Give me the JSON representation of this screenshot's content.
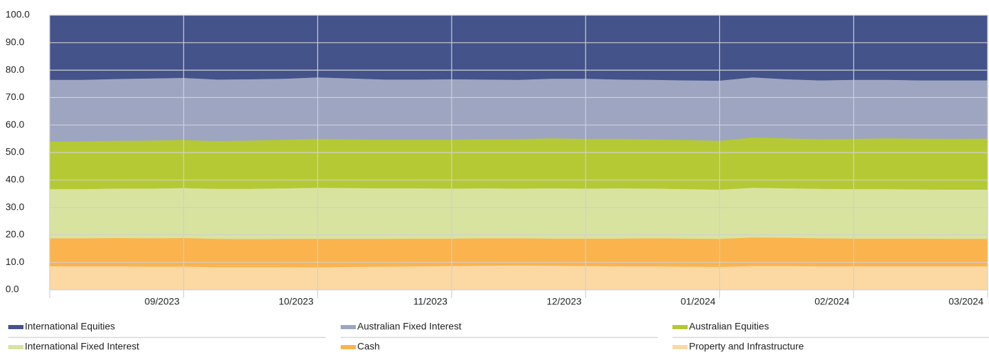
{
  "chart_data": {
    "type": "stacked_area",
    "categories": [
      null,
      null,
      null,
      null,
      "09/2023",
      null,
      null,
      null,
      "10/2023",
      null,
      null,
      null,
      "11/2023",
      null,
      null,
      null,
      "12/2023",
      null,
      null,
      null,
      "01/2024",
      null,
      null,
      null,
      "02/2024",
      null,
      null,
      null,
      "03/2024"
    ],
    "series": [
      {
        "name": "International Equities",
        "color": "#44538a",
        "values": [
          23.5,
          23.5,
          23.2,
          23.0,
          22.8,
          23.4,
          23.3,
          23.1,
          22.6,
          23.0,
          23.4,
          23.4,
          23.3,
          23.4,
          23.5,
          23.1,
          23.1,
          23.4,
          23.5,
          23.7,
          23.8,
          22.6,
          23.3,
          23.7,
          23.5,
          23.5,
          23.7,
          23.7,
          23.7
        ]
      },
      {
        "name": "Australian Fixed Interest",
        "color": "#9ea5c1",
        "values": [
          22.5,
          22.4,
          22.5,
          22.6,
          22.6,
          22.4,
          22.3,
          22.2,
          22.4,
          22.2,
          21.9,
          21.9,
          22.0,
          21.7,
          21.6,
          21.7,
          21.9,
          21.6,
          21.7,
          21.7,
          21.9,
          21.9,
          21.5,
          21.4,
          21.5,
          21.3,
          21.2,
          21.3,
          21.2
        ]
      },
      {
        "name": "Australian Equities",
        "color": "#b5c934",
        "values": [
          17.3,
          17.4,
          17.4,
          17.5,
          17.5,
          17.4,
          17.6,
          17.7,
          17.8,
          17.7,
          17.7,
          17.7,
          17.8,
          17.9,
          18.0,
          18.2,
          18.1,
          18.0,
          17.9,
          17.9,
          17.8,
          18.3,
          18.2,
          18.1,
          18.3,
          18.5,
          18.5,
          18.5,
          18.6
        ]
      },
      {
        "name": "International Fixed Interest",
        "color": "#d9e3a0",
        "values": [
          17.9,
          17.9,
          18.0,
          18.1,
          18.2,
          18.2,
          18.3,
          18.4,
          18.6,
          18.5,
          18.4,
          18.3,
          18.2,
          18.2,
          18.1,
          18.3,
          18.2,
          18.3,
          18.1,
          18.0,
          17.9,
          18.1,
          18.0,
          18.0,
          18.0,
          18.0,
          17.9,
          17.9,
          17.9
        ]
      },
      {
        "name": "Cash",
        "color": "#fbb34e",
        "values": [
          10.2,
          10.2,
          10.3,
          10.3,
          10.4,
          10.3,
          10.2,
          10.3,
          10.4,
          10.2,
          10.1,
          10.1,
          10.0,
          10.0,
          9.9,
          9.9,
          10.0,
          10.1,
          10.2,
          10.2,
          10.2,
          10.4,
          10.3,
          10.2,
          10.1,
          10.1,
          10.1,
          10.0,
          10.0
        ]
      },
      {
        "name": "Property and Infrastructure",
        "color": "#fcd9a3",
        "values": [
          8.6,
          8.6,
          8.6,
          8.5,
          8.5,
          8.3,
          8.3,
          8.3,
          8.2,
          8.4,
          8.5,
          8.6,
          8.7,
          8.8,
          8.9,
          8.8,
          8.7,
          8.6,
          8.6,
          8.5,
          8.4,
          8.7,
          8.7,
          8.6,
          8.6,
          8.6,
          8.6,
          8.6,
          8.6
        ]
      }
    ],
    "ylim": [
      0,
      100
    ],
    "yticks": [
      {
        "value": 0,
        "label": "0.0"
      },
      {
        "value": 10,
        "label": "10.0"
      },
      {
        "value": 20,
        "label": "20.0"
      },
      {
        "value": 30,
        "label": "30.0"
      },
      {
        "value": 40,
        "label": "40.0"
      },
      {
        "value": 50,
        "label": "50.0"
      },
      {
        "value": 60,
        "label": "60.0"
      },
      {
        "value": 70,
        "label": "70.0"
      },
      {
        "value": 80,
        "label": "80.0"
      },
      {
        "value": 90,
        "label": "90.0"
      },
      {
        "value": 100,
        "label": "100.0"
      }
    ],
    "grid": true
  }
}
